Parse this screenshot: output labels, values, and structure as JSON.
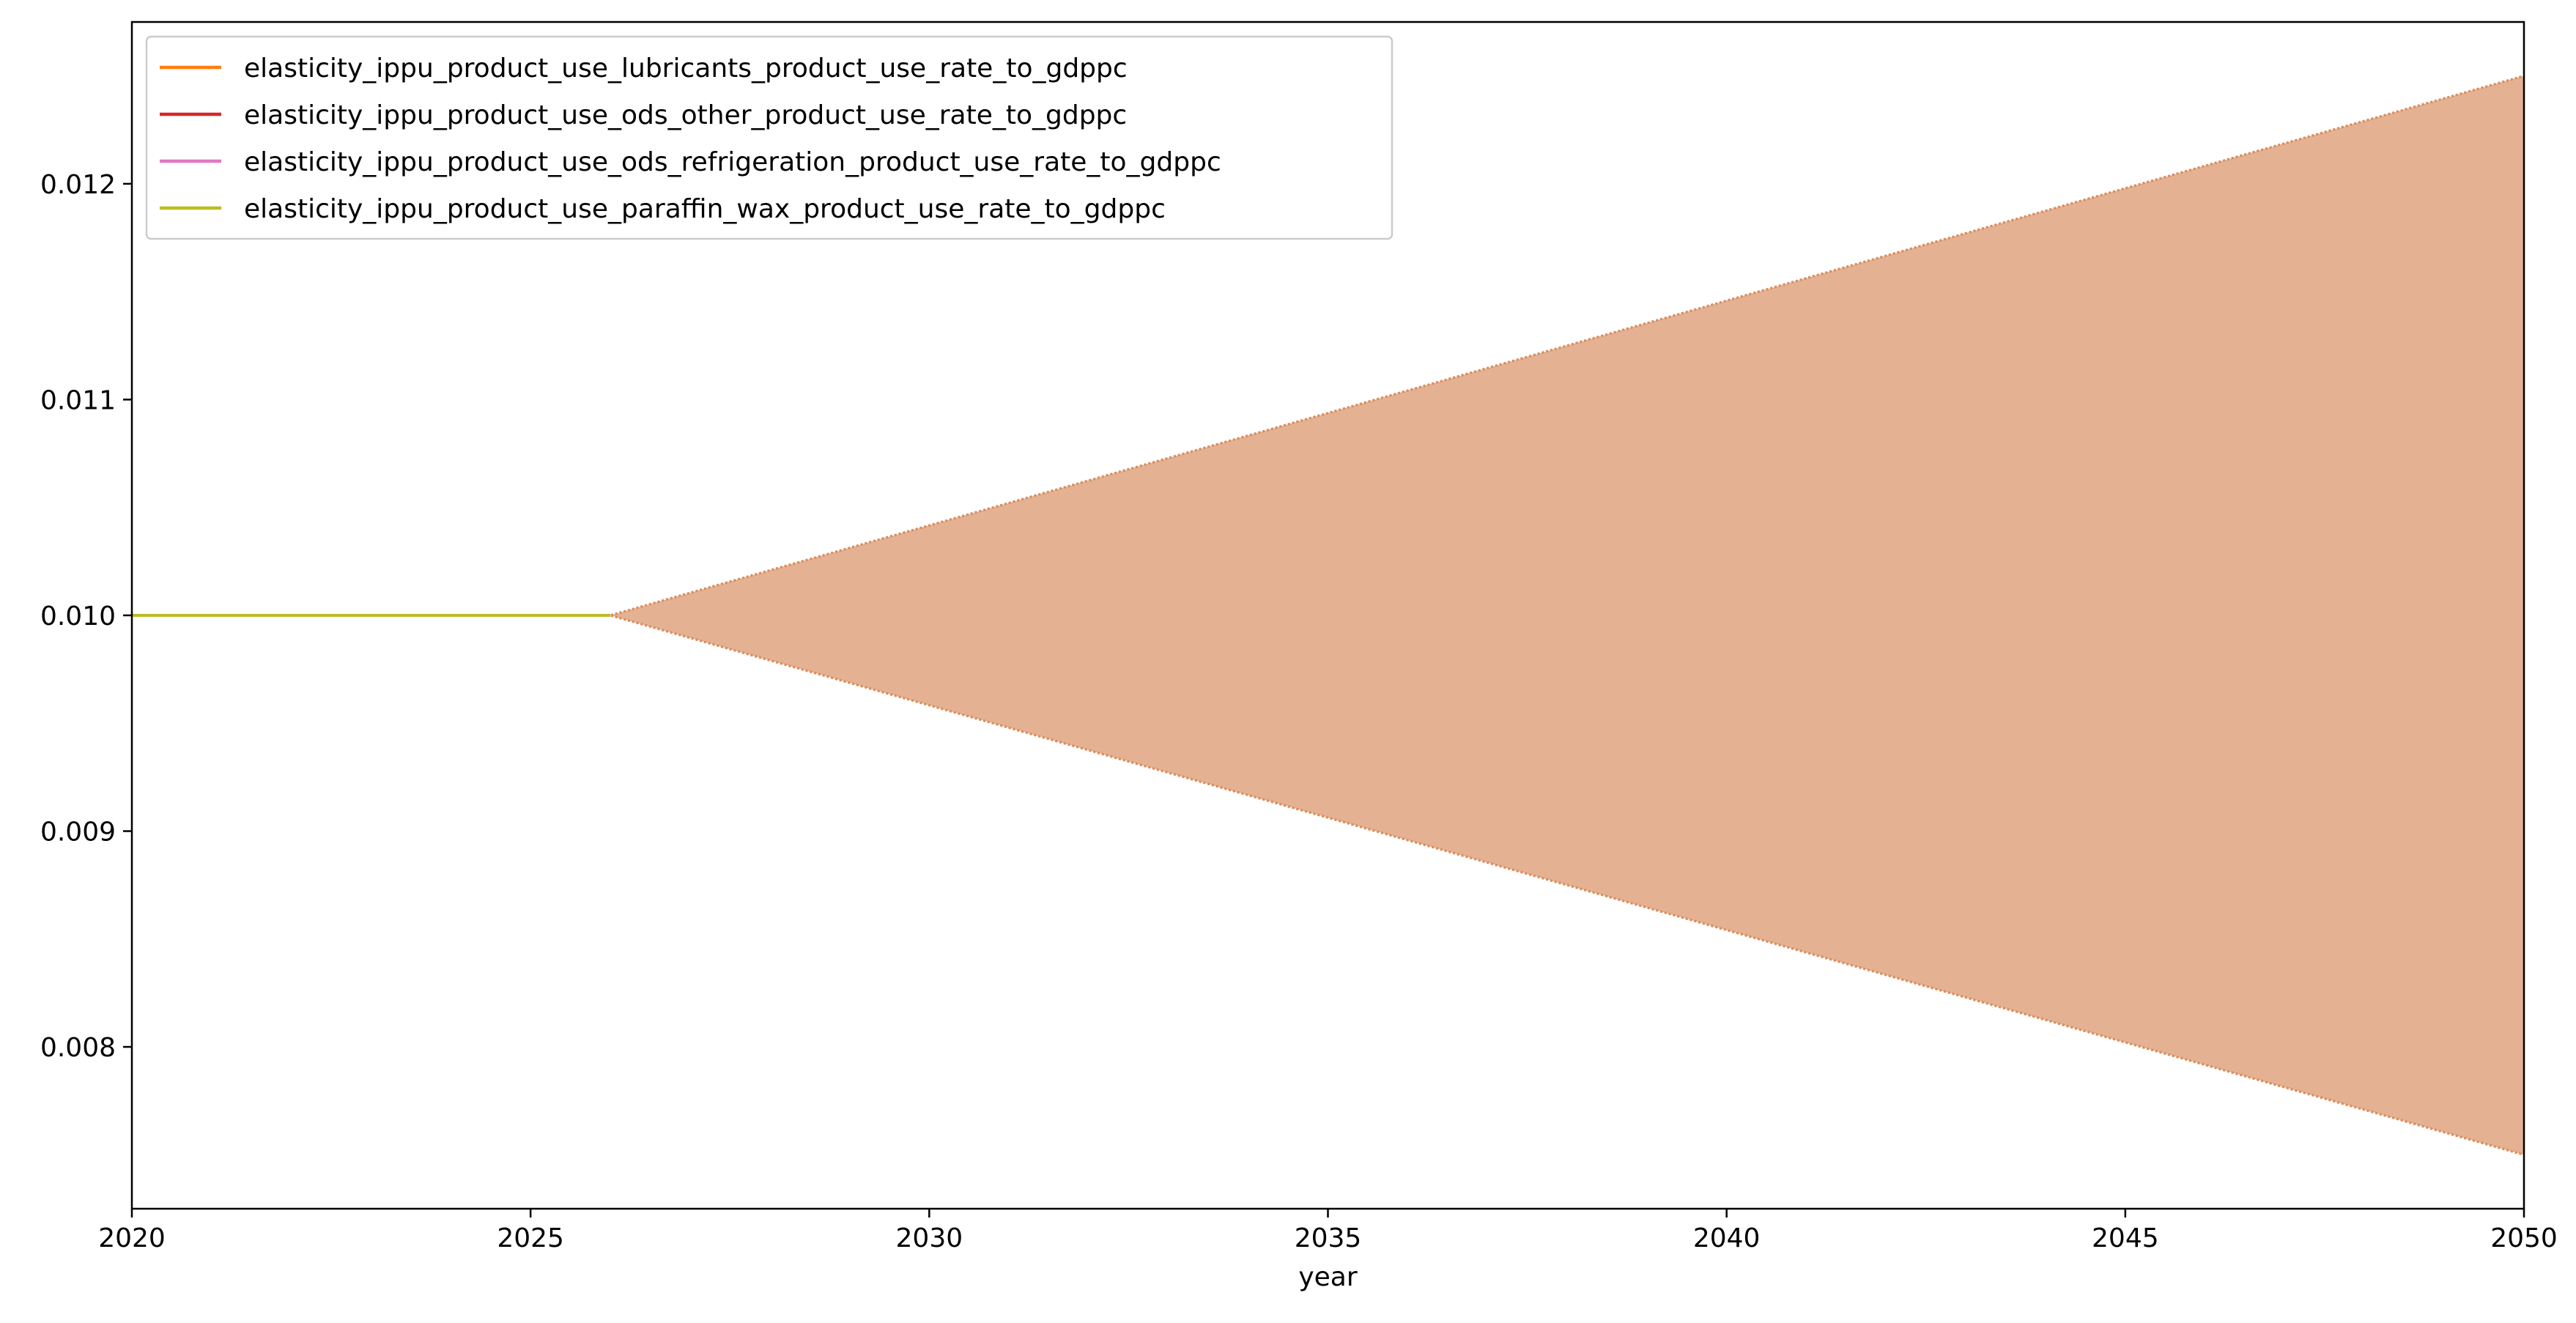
{
  "chart_data": {
    "type": "area",
    "xlabel": "year",
    "ylabel": "",
    "xlim": [
      2020,
      2050
    ],
    "ylim": [
      0.00725,
      0.01275
    ],
    "x_ticks": [
      2020,
      2025,
      2030,
      2035,
      2040,
      2045,
      2050
    ],
    "x_tick_labels": [
      "2020",
      "2025",
      "2030",
      "2035",
      "2040",
      "2045",
      "2050"
    ],
    "y_ticks": [
      0.008,
      0.009,
      0.01,
      0.011,
      0.012
    ],
    "y_tick_labels": [
      "0.008",
      "0.009",
      "0.010",
      "0.011",
      "0.012"
    ],
    "legend_position": "upper-left",
    "grid": false,
    "series": [
      {
        "name": "elasticity_ippu_product_use_lubricants_product_use_rate_to_gdppc",
        "color": "#ff7f0e",
        "x": [
          2020,
          2026,
          2050
        ],
        "y": [
          0.01,
          0.01,
          0.01
        ],
        "band_lower": [
          0.01,
          0.01,
          0.0075
        ],
        "band_upper": [
          0.01,
          0.01,
          0.0125
        ]
      },
      {
        "name": "elasticity_ippu_product_use_ods_other_product_use_rate_to_gdppc",
        "color": "#d62728",
        "x": [
          2020,
          2026,
          2050
        ],
        "y": [
          0.01,
          0.01,
          0.01
        ],
        "band_lower": [
          0.01,
          0.01,
          0.0075
        ],
        "band_upper": [
          0.01,
          0.01,
          0.0125
        ]
      },
      {
        "name": "elasticity_ippu_product_use_ods_refrigeration_product_use_rate_to_gdppc",
        "color": "#e377c2",
        "x": [
          2020,
          2026,
          2050
        ],
        "y": [
          0.01,
          0.01,
          0.01
        ],
        "band_lower": [
          0.01,
          0.01,
          0.0075
        ],
        "band_upper": [
          0.01,
          0.01,
          0.0125
        ]
      },
      {
        "name": "elasticity_ippu_product_use_paraffin_wax_product_use_rate_to_gdppc",
        "color": "#bcbd22",
        "x": [
          2020,
          2026,
          2050
        ],
        "y": [
          0.01,
          0.01,
          0.01
        ],
        "band_lower": [
          0.01,
          0.01,
          0.0075
        ],
        "band_upper": [
          0.01,
          0.01,
          0.0125
        ]
      }
    ],
    "band_fill_color": "#e5b193"
  }
}
